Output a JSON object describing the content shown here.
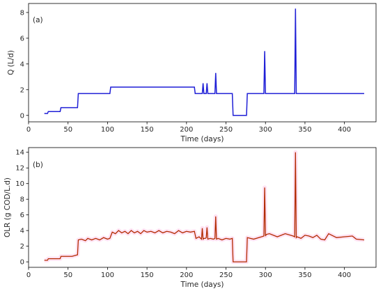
{
  "chart_data": [
    {
      "type": "line",
      "panel_label": "(a)",
      "xlabel": "Time (days)",
      "ylabel": "Q (L/d)",
      "xlim": [
        0,
        440
      ],
      "ylim": [
        -0.5,
        8.7
      ],
      "xticks": [
        0,
        50,
        100,
        150,
        200,
        250,
        300,
        350,
        400
      ],
      "yticks": [
        0,
        2,
        4,
        6,
        8
      ],
      "color": "#1f1fd6",
      "series": [
        {
          "x": [
            20,
            24,
            25,
            40,
            41,
            62,
            63,
            103,
            104,
            210,
            211,
            220,
            221,
            222,
            223,
            225,
            226,
            227,
            228,
            236,
            237,
            238,
            239,
            258,
            259,
            276,
            277,
            298,
            299,
            300,
            301,
            337,
            338,
            339,
            340,
            425
          ],
          "y": [
            0.15,
            0.15,
            0.3,
            0.3,
            0.6,
            0.6,
            1.7,
            1.7,
            2.2,
            2.2,
            1.7,
            1.7,
            2.5,
            1.7,
            1.7,
            1.7,
            2.5,
            1.7,
            1.7,
            1.7,
            3.3,
            1.7,
            1.7,
            1.7,
            0.0,
            0.0,
            1.7,
            1.7,
            5.0,
            1.7,
            1.7,
            1.7,
            8.3,
            1.7,
            1.7,
            1.7
          ]
        }
      ]
    },
    {
      "type": "line",
      "panel_label": "(b)",
      "xlabel": "Time (days)",
      "ylabel": "OLR (g COD/L.d)",
      "xlim": [
        0,
        440
      ],
      "ylim": [
        -0.7,
        14.6
      ],
      "xticks": [
        0,
        50,
        100,
        150,
        200,
        250,
        300,
        350,
        400
      ],
      "yticks": [
        0,
        2,
        4,
        6,
        8,
        10,
        12,
        14
      ],
      "color": "#b22a00",
      "series": [
        {
          "x": [
            20,
            24,
            25,
            40,
            41,
            55,
            62,
            63,
            67,
            72,
            75,
            80,
            85,
            90,
            95,
            100,
            103,
            106,
            110,
            114,
            118,
            122,
            126,
            130,
            134,
            138,
            142,
            146,
            150,
            155,
            160,
            165,
            170,
            175,
            180,
            185,
            190,
            195,
            200,
            205,
            210,
            212,
            216,
            219,
            220,
            221,
            222,
            224,
            225,
            226,
            227,
            230,
            234,
            236,
            237,
            238,
            240,
            245,
            250,
            255,
            258,
            259,
            276,
            277,
            285,
            295,
            298,
            299,
            300,
            301,
            305,
            315,
            325,
            335,
            337,
            338,
            339,
            340,
            345,
            350,
            355,
            360,
            365,
            370,
            375,
            380,
            390,
            400,
            410,
            415,
            425
          ],
          "y": [
            0.2,
            0.2,
            0.4,
            0.4,
            0.7,
            0.7,
            0.9,
            2.8,
            2.9,
            2.7,
            3.0,
            2.8,
            3.0,
            2.8,
            3.1,
            2.9,
            3.0,
            3.8,
            3.6,
            4.0,
            3.7,
            3.9,
            3.6,
            4.0,
            3.7,
            3.9,
            3.6,
            4.0,
            3.8,
            3.9,
            3.7,
            4.0,
            3.7,
            3.9,
            3.8,
            3.6,
            4.0,
            3.7,
            3.9,
            3.8,
            3.9,
            3.0,
            3.2,
            2.9,
            4.3,
            2.9,
            3.0,
            3.0,
            3.1,
            4.4,
            2.9,
            3.0,
            2.9,
            3.0,
            5.8,
            2.9,
            3.0,
            2.8,
            3.0,
            2.9,
            3.0,
            0.0,
            0.0,
            3.1,
            2.9,
            3.2,
            3.3,
            9.5,
            3.3,
            3.5,
            3.6,
            3.2,
            3.6,
            3.3,
            3.2,
            14.0,
            3.1,
            3.2,
            3.0,
            3.4,
            3.3,
            3.1,
            3.4,
            2.9,
            2.8,
            3.6,
            3.1,
            3.2,
            3.3,
            2.9,
            2.8
          ]
        }
      ]
    }
  ]
}
